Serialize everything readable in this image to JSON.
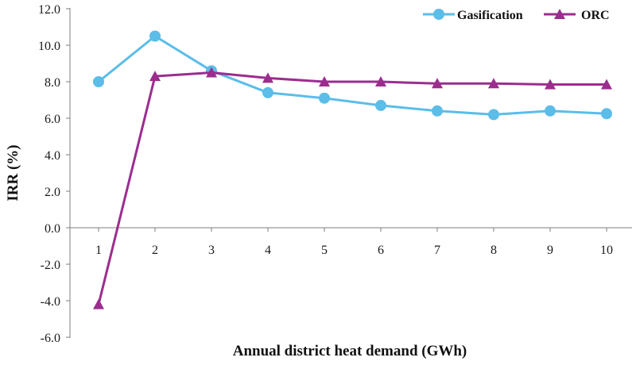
{
  "chart_data": {
    "type": "line",
    "x": [
      1,
      2,
      3,
      4,
      5,
      6,
      7,
      8,
      9,
      10
    ],
    "x_tick_labels": [
      "1",
      "2",
      "3",
      "4",
      "5",
      "6",
      "7",
      "8",
      "9",
      "10"
    ],
    "y_tick_labels": [
      "12.0",
      "10.0",
      "8.0",
      "6.0",
      "4.0",
      "2.0",
      "0.0",
      "-2.0",
      "-4.0",
      "-6.0"
    ],
    "y_ticks": [
      12,
      10,
      8,
      6,
      4,
      2,
      0,
      -2,
      -4,
      -6
    ],
    "ylim": [
      -6,
      12
    ],
    "xlabel": "Annual district heat demand (GWh)",
    "ylabel": "IRR (%)",
    "grid": false,
    "legend_position": "top-right",
    "series": [
      {
        "name": "Gasification",
        "marker": "circle",
        "color": "#5bbde8",
        "values": [
          8.0,
          10.5,
          8.6,
          7.4,
          7.1,
          6.7,
          6.4,
          6.2,
          6.4,
          6.25
        ]
      },
      {
        "name": "ORC",
        "marker": "triangle",
        "color": "#9b2d8f",
        "values": [
          -4.2,
          8.3,
          8.5,
          8.2,
          8.0,
          8.0,
          7.9,
          7.9,
          7.85,
          7.85
        ]
      }
    ]
  }
}
